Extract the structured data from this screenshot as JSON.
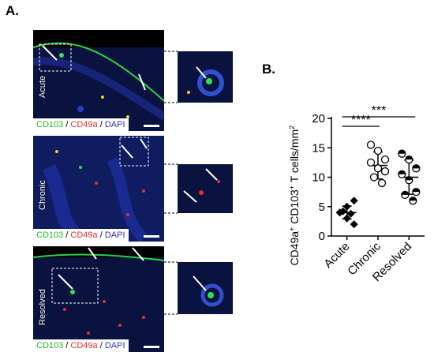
{
  "panel_a": {
    "letter": "A.",
    "rows": [
      {
        "label": "Acute",
        "stains": [
          "CD103",
          " / ",
          "CD49a",
          " / ",
          "DAPI"
        ]
      },
      {
        "label": "Chronic",
        "stains": [
          "CD103",
          " / ",
          "CD49a",
          " / ",
          "DAPI"
        ]
      },
      {
        "label": "Resolved",
        "stains": [
          "CD103",
          " / ",
          "CD49a",
          " / ",
          "DAPI"
        ]
      }
    ],
    "stain_colors": {
      "CD103": "#22bb22",
      "CD49a": "#e03030",
      "DAPI": "#3030c0",
      "sep": "#000000"
    }
  },
  "panel_b": {
    "letter": "B.",
    "significance": [
      {
        "label": "****",
        "from": "Acute",
        "to": "Chronic"
      },
      {
        "label": "***",
        "from": "Acute",
        "to": "Resolved"
      }
    ]
  },
  "chart_data": {
    "type": "scatter",
    "categories": [
      "Acute",
      "Chronic",
      "Resolved"
    ],
    "series": [
      {
        "category": "Acute",
        "marker": "filled-diamond",
        "values": [
          4.0,
          5.0,
          6.0,
          4.0,
          3.0,
          2.0,
          4.2,
          3.8
        ],
        "mean": 4.0,
        "sd": 1.1
      },
      {
        "category": "Chronic",
        "marker": "open-circle",
        "values": [
          15.5,
          14.5,
          13.0,
          12.5,
          11.5,
          11.0,
          10.0,
          9.0
        ],
        "mean": 12.0,
        "sd": 2.3
      },
      {
        "category": "Resolved",
        "marker": "half-filled-circle",
        "values": [
          14.0,
          13.0,
          11.5,
          10.5,
          9.5,
          7.5,
          7.0,
          6.0
        ],
        "mean": 10.0,
        "sd": 2.9
      }
    ],
    "ylabel_parts": [
      "CD49a",
      "+",
      " CD103",
      "+",
      " T cells/mm",
      "2"
    ],
    "yticks": [
      0,
      5,
      10,
      15,
      20
    ],
    "ylim": [
      0,
      20
    ],
    "grid": false
  }
}
